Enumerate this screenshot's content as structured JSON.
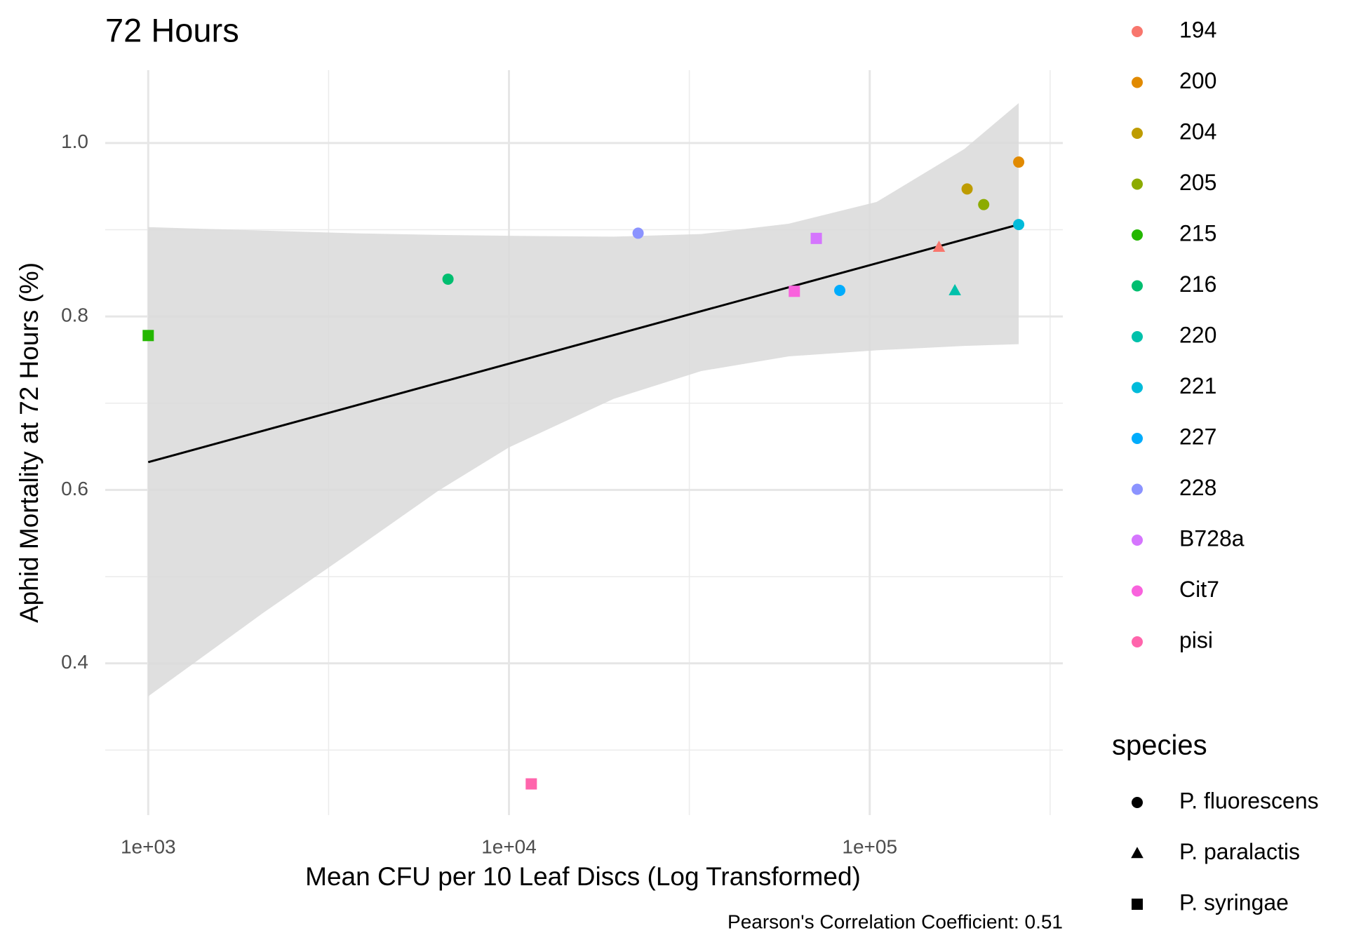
{
  "chart_data": {
    "type": "scatter",
    "title": "72 Hours",
    "x_label": "Mean CFU per 10 Leaf Discs (Log Transformed)",
    "y_label": "Aphid Mortality at 72 Hours (%)",
    "caption": "Pearson's Correlation Coefficient: 0.51",
    "x_log": true,
    "grid": true,
    "xlim": [
      760,
      343000
    ],
    "ylim": [
      0.225,
      1.084
    ],
    "xticks": [
      {
        "value": 1000,
        "label": "1e+03"
      },
      {
        "value": 10000,
        "label": "1e+04"
      },
      {
        "value": 100000,
        "label": "1e+05"
      }
    ],
    "yticks": [
      0.4,
      0.6,
      0.8,
      {
        "value": 1.0,
        "label": "1.0"
      }
    ],
    "x_minor_grid": [
      3162,
      31623,
      316228
    ],
    "y_minor_grid": [
      0.3,
      0.5,
      0.7,
      0.9
    ],
    "series": [
      {
        "name": "194",
        "color": "#F8766D",
        "shape": "triangle",
        "x": [
          155600
        ],
        "y": [
          0.88
        ]
      },
      {
        "name": "200",
        "color": "#E18A00",
        "shape": "circle",
        "x": [
          258800
        ],
        "y": [
          0.978
        ]
      },
      {
        "name": "204",
        "color": "#BE9C00",
        "shape": "circle",
        "x": [
          186200
        ],
        "y": [
          0.947
        ]
      },
      {
        "name": "205",
        "color": "#8CAB00",
        "shape": "circle",
        "x": [
          207000
        ],
        "y": [
          0.929
        ]
      },
      {
        "name": "215",
        "color": "#24B700",
        "shape": "square",
        "x": [
          1000
        ],
        "y": [
          0.778
        ]
      },
      {
        "name": "216",
        "color": "#00BE70",
        "shape": "circle",
        "x": [
          6776
        ],
        "y": [
          0.843
        ]
      },
      {
        "name": "220",
        "color": "#00C1AB",
        "shape": "triangle",
        "x": [
          172200
        ],
        "y": [
          0.83
        ]
      },
      {
        "name": "221",
        "color": "#00BBDA",
        "shape": "circle",
        "x": [
          258800
        ],
        "y": [
          0.906
        ]
      },
      {
        "name": "227",
        "color": "#00ACFC",
        "shape": "circle",
        "x": [
          82600
        ],
        "y": [
          0.83
        ]
      },
      {
        "name": "228",
        "color": "#8B93FF",
        "shape": "circle",
        "x": [
          22800
        ],
        "y": [
          0.896
        ]
      },
      {
        "name": "B728a",
        "color": "#D575FE",
        "shape": "square",
        "x": [
          71100
        ],
        "y": [
          0.89
        ]
      },
      {
        "name": "Cit7",
        "color": "#F962DD",
        "shape": "square",
        "x": [
          61800
        ],
        "y": [
          0.829
        ]
      },
      {
        "name": "pisi",
        "color": "#FF65AC",
        "shape": "square",
        "x": [
          11530
        ],
        "y": [
          0.261
        ]
      }
    ],
    "fit": {
      "color": "#000000",
      "x": [
        1000,
        258800
      ],
      "y": [
        0.632,
        0.906
      ]
    },
    "band": {
      "color": "#d9d9d9",
      "x": [
        1000,
        2080,
        3640,
        6370,
        10000,
        19500,
        34100,
        59700,
        104500,
        182800,
        258800
      ],
      "upper": [
        0.903,
        0.899,
        0.896,
        0.894,
        0.893,
        0.892,
        0.895,
        0.907,
        0.932,
        0.993,
        1.046
      ],
      "lower": [
        0.362,
        0.458,
        0.528,
        0.599,
        0.649,
        0.705,
        0.737,
        0.754,
        0.761,
        0.766,
        0.768
      ]
    },
    "shape_legend": {
      "title": "species",
      "items": [
        {
          "name": "P. fluorescens",
          "shape": "circle"
        },
        {
          "name": "P. paralactis",
          "shape": "triangle"
        },
        {
          "name": "P. syringae",
          "shape": "square"
        }
      ]
    }
  }
}
